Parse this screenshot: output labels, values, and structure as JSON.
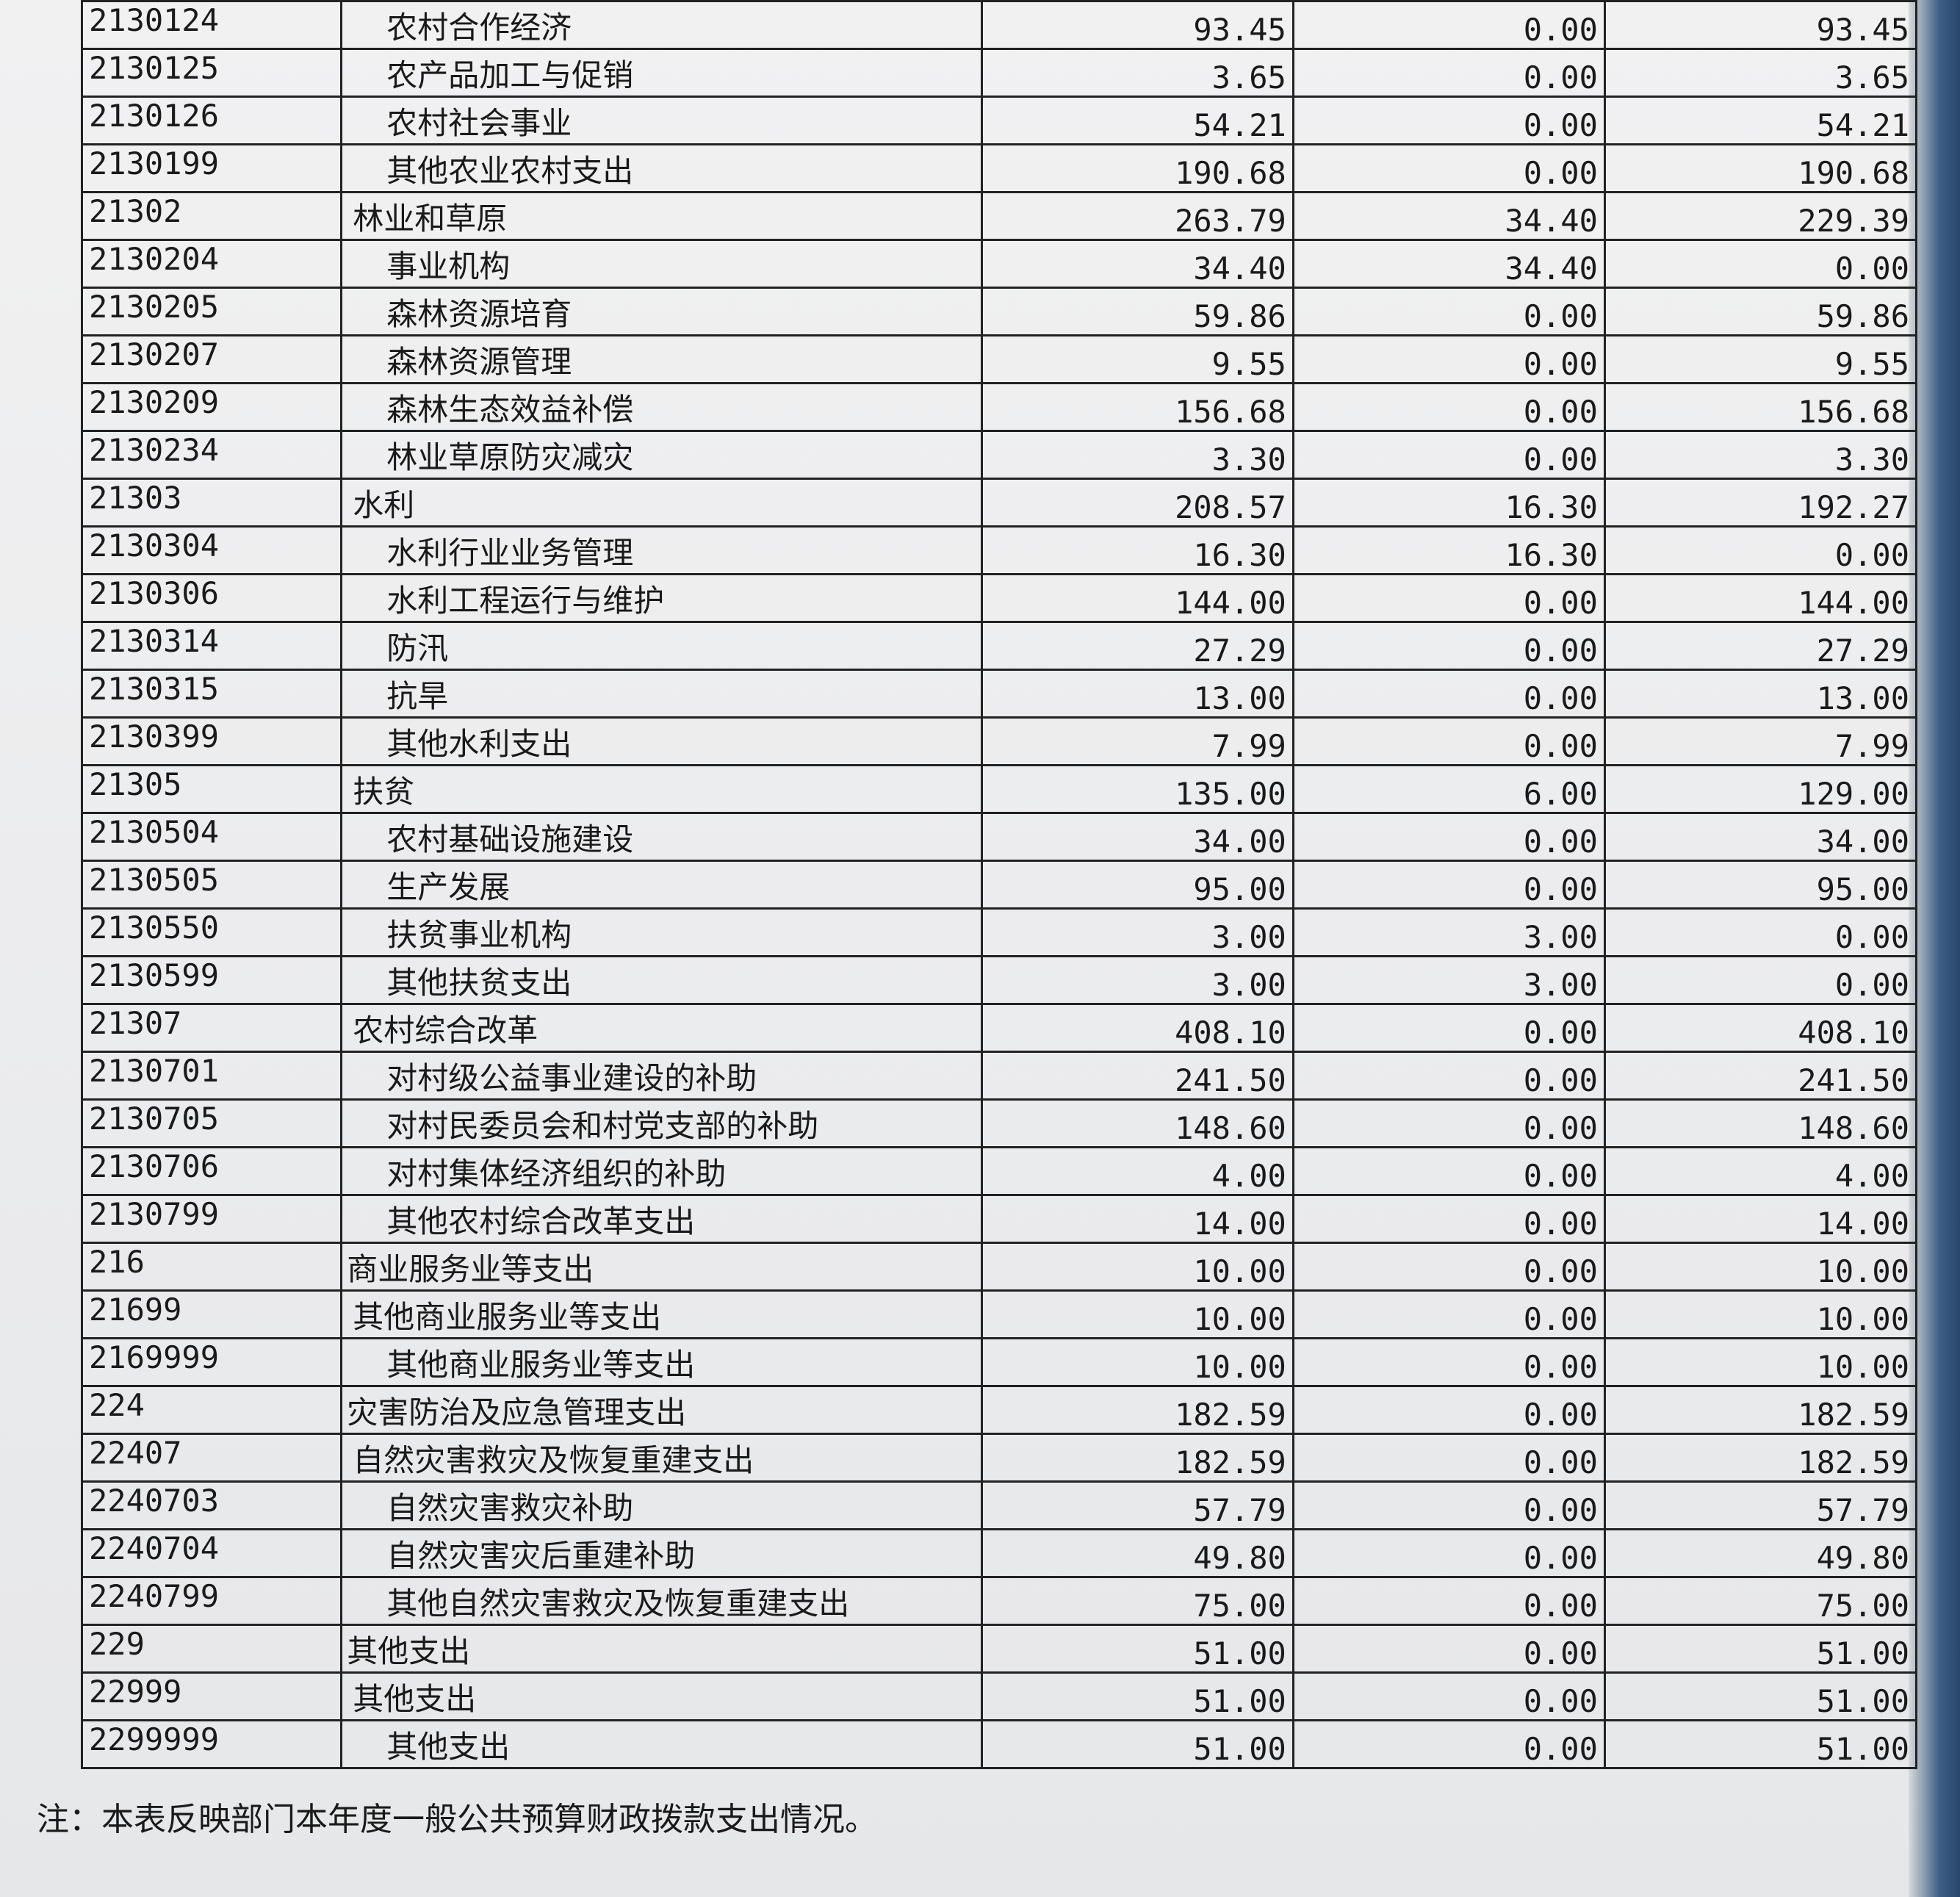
{
  "rows": [
    {
      "code": "2130124",
      "name": "农村合作经济",
      "level": 2,
      "total": "93.45",
      "basic": "0.00",
      "project": "93.45"
    },
    {
      "code": "2130125",
      "name": "农产品加工与促销",
      "level": 2,
      "total": "3.65",
      "basic": "0.00",
      "project": "3.65"
    },
    {
      "code": "2130126",
      "name": "农村社会事业",
      "level": 2,
      "total": "54.21",
      "basic": "0.00",
      "project": "54.21"
    },
    {
      "code": "2130199",
      "name": "其他农业农村支出",
      "level": 2,
      "total": "190.68",
      "basic": "0.00",
      "project": "190.68"
    },
    {
      "code": "21302",
      "name": "林业和草原",
      "level": 1,
      "total": "263.79",
      "basic": "34.40",
      "project": "229.39"
    },
    {
      "code": "2130204",
      "name": "事业机构",
      "level": 2,
      "total": "34.40",
      "basic": "34.40",
      "project": "0.00"
    },
    {
      "code": "2130205",
      "name": "森林资源培育",
      "level": 2,
      "total": "59.86",
      "basic": "0.00",
      "project": "59.86"
    },
    {
      "code": "2130207",
      "name": "森林资源管理",
      "level": 2,
      "total": "9.55",
      "basic": "0.00",
      "project": "9.55"
    },
    {
      "code": "2130209",
      "name": "森林生态效益补偿",
      "level": 2,
      "total": "156.68",
      "basic": "0.00",
      "project": "156.68"
    },
    {
      "code": "2130234",
      "name": "林业草原防灾减灾",
      "level": 2,
      "total": "3.30",
      "basic": "0.00",
      "project": "3.30"
    },
    {
      "code": "21303",
      "name": "水利",
      "level": 1,
      "total": "208.57",
      "basic": "16.30",
      "project": "192.27"
    },
    {
      "code": "2130304",
      "name": "水利行业业务管理",
      "level": 2,
      "total": "16.30",
      "basic": "16.30",
      "project": "0.00"
    },
    {
      "code": "2130306",
      "name": "水利工程运行与维护",
      "level": 2,
      "total": "144.00",
      "basic": "0.00",
      "project": "144.00"
    },
    {
      "code": "2130314",
      "name": "防汛",
      "level": 2,
      "total": "27.29",
      "basic": "0.00",
      "project": "27.29"
    },
    {
      "code": "2130315",
      "name": "抗旱",
      "level": 2,
      "total": "13.00",
      "basic": "0.00",
      "project": "13.00"
    },
    {
      "code": "2130399",
      "name": "其他水利支出",
      "level": 2,
      "total": "7.99",
      "basic": "0.00",
      "project": "7.99"
    },
    {
      "code": "21305",
      "name": "扶贫",
      "level": 1,
      "total": "135.00",
      "basic": "6.00",
      "project": "129.00"
    },
    {
      "code": "2130504",
      "name": "农村基础设施建设",
      "level": 2,
      "total": "34.00",
      "basic": "0.00",
      "project": "34.00"
    },
    {
      "code": "2130505",
      "name": "生产发展",
      "level": 2,
      "total": "95.00",
      "basic": "0.00",
      "project": "95.00"
    },
    {
      "code": "2130550",
      "name": "扶贫事业机构",
      "level": 2,
      "total": "3.00",
      "basic": "3.00",
      "project": "0.00"
    },
    {
      "code": "2130599",
      "name": "其他扶贫支出",
      "level": 2,
      "total": "3.00",
      "basic": "3.00",
      "project": "0.00"
    },
    {
      "code": "21307",
      "name": "农村综合改革",
      "level": 1,
      "total": "408.10",
      "basic": "0.00",
      "project": "408.10"
    },
    {
      "code": "2130701",
      "name": "对村级公益事业建设的补助",
      "level": 2,
      "total": "241.50",
      "basic": "0.00",
      "project": "241.50"
    },
    {
      "code": "2130705",
      "name": "对村民委员会和村党支部的补助",
      "level": 2,
      "total": "148.60",
      "basic": "0.00",
      "project": "148.60"
    },
    {
      "code": "2130706",
      "name": "对村集体经济组织的补助",
      "level": 2,
      "total": "4.00",
      "basic": "0.00",
      "project": "4.00"
    },
    {
      "code": "2130799",
      "name": "其他农村综合改革支出",
      "level": 2,
      "total": "14.00",
      "basic": "0.00",
      "project": "14.00"
    },
    {
      "code": "216",
      "name": "商业服务业等支出",
      "level": 0,
      "total": "10.00",
      "basic": "0.00",
      "project": "10.00"
    },
    {
      "code": "21699",
      "name": "其他商业服务业等支出",
      "level": 1,
      "total": "10.00",
      "basic": "0.00",
      "project": "10.00"
    },
    {
      "code": "2169999",
      "name": "其他商业服务业等支出",
      "level": 2,
      "total": "10.00",
      "basic": "0.00",
      "project": "10.00"
    },
    {
      "code": "224",
      "name": "灾害防治及应急管理支出",
      "level": 0,
      "total": "182.59",
      "basic": "0.00",
      "project": "182.59"
    },
    {
      "code": "22407",
      "name": "自然灾害救灾及恢复重建支出",
      "level": 1,
      "total": "182.59",
      "basic": "0.00",
      "project": "182.59"
    },
    {
      "code": "2240703",
      "name": "自然灾害救灾补助",
      "level": 2,
      "total": "57.79",
      "basic": "0.00",
      "project": "57.79"
    },
    {
      "code": "2240704",
      "name": "自然灾害灾后重建补助",
      "level": 2,
      "total": "49.80",
      "basic": "0.00",
      "project": "49.80"
    },
    {
      "code": "2240799",
      "name": "其他自然灾害救灾及恢复重建支出",
      "level": 2,
      "total": "75.00",
      "basic": "0.00",
      "project": "75.00"
    },
    {
      "code": "229",
      "name": "其他支出",
      "level": 0,
      "total": "51.00",
      "basic": "0.00",
      "project": "51.00"
    },
    {
      "code": "22999",
      "name": "其他支出",
      "level": 1,
      "total": "51.00",
      "basic": "0.00",
      "project": "51.00"
    },
    {
      "code": "2299999",
      "name": "其他支出",
      "level": 2,
      "total": "51.00",
      "basic": "0.00",
      "project": "51.00"
    }
  ],
  "note": "注：本表反映部门本年度一般公共预算财政拨款支出情况。"
}
